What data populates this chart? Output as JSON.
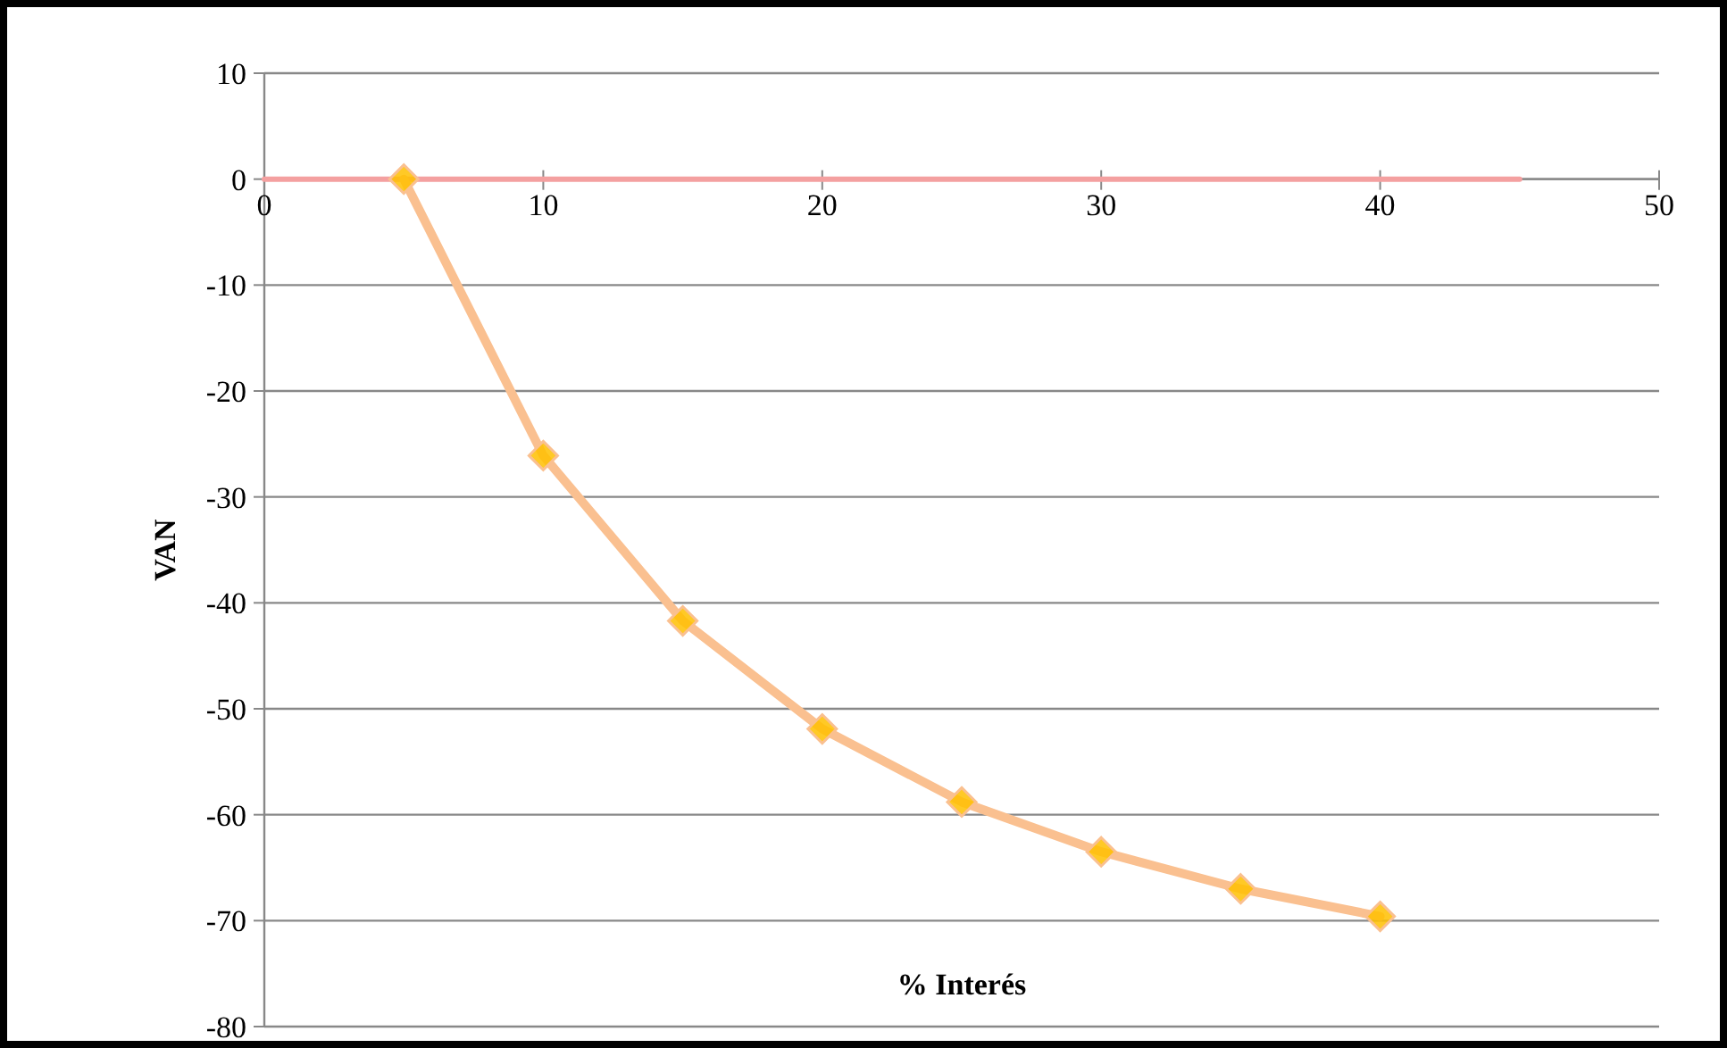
{
  "chart_data": {
    "type": "line",
    "xlabel": "% Interés",
    "ylabel": "VAN",
    "xlim": [
      0,
      50
    ],
    "xticks": [
      0,
      10,
      20,
      30,
      40,
      50
    ],
    "ylim": [
      -80,
      10
    ],
    "yticks": [
      -80,
      -70,
      -60,
      -50,
      -40,
      -30,
      -20,
      -10,
      0,
      10
    ],
    "grid": "y",
    "marker": "diamond",
    "line_style": "solid",
    "series": [
      {
        "color": "#f4a0a0",
        "x": [
          0,
          45
        ],
        "values": [
          0,
          0
        ],
        "marker": "none"
      },
      {
        "color": "#fac090",
        "x": [
          5,
          10,
          15,
          20,
          25,
          30,
          35,
          40
        ],
        "values": [
          0,
          -26.1,
          -41.7,
          -51.9,
          -58.8,
          -63.5,
          -67.0,
          -69.6
        ]
      }
    ]
  }
}
